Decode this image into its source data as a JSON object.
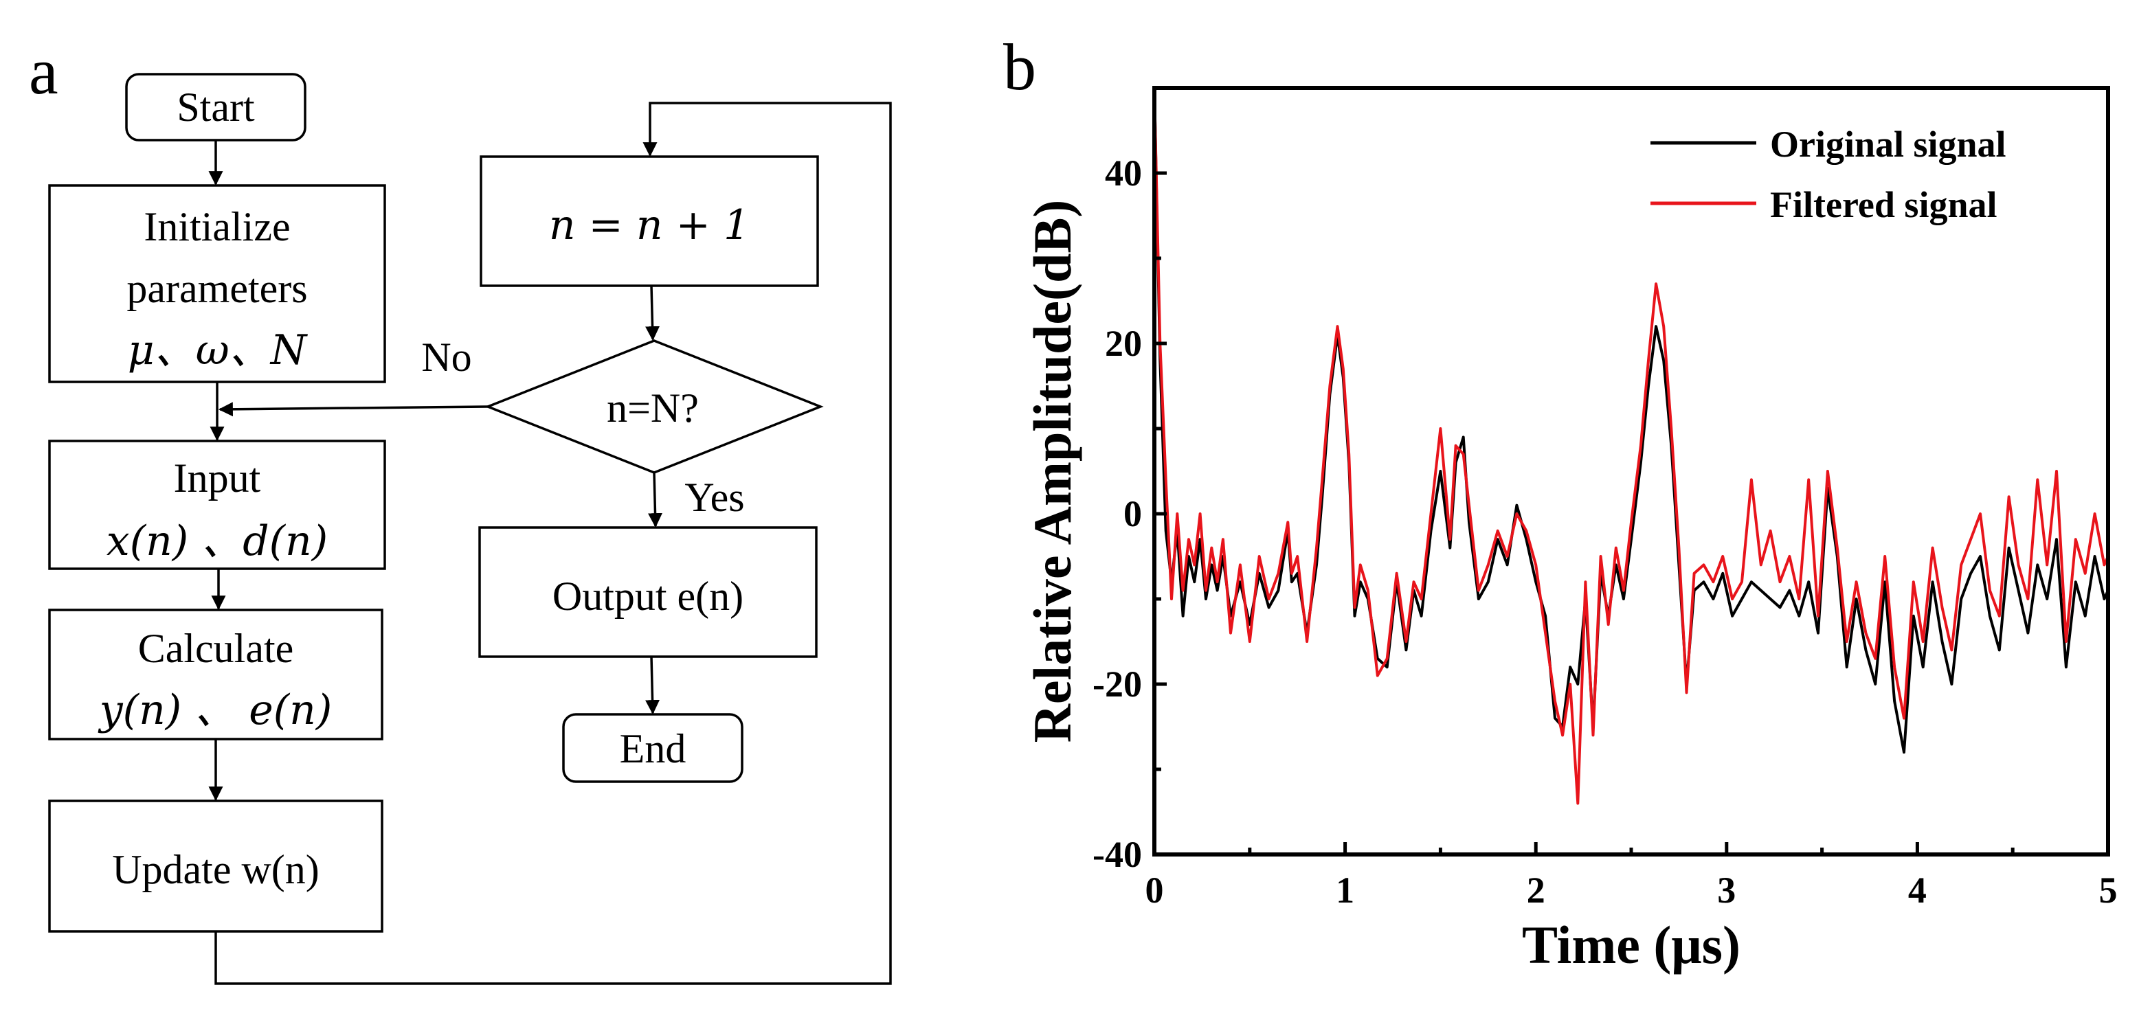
{
  "panel_a": {
    "label": "a",
    "nodes": {
      "start": "Start",
      "init_line1": "Initialize",
      "init_line2": "parameters",
      "init_line3": "μ、ω、N",
      "input_line1": "Input",
      "input_line2": "x(n) 、d(n)",
      "calc_line1": "Calculate",
      "calc_line2": "y(n) 、 e(n)",
      "update": "Update w(n)",
      "increment": "n = n + 1",
      "decision": "n=N?",
      "output": "Output e(n)",
      "end": "End"
    },
    "edges": {
      "no_label": "No",
      "yes_label": "Yes"
    }
  },
  "panel_b": {
    "label": "b"
  },
  "chart_data": {
    "type": "line",
    "title": "",
    "xlabel": "Time (μs)",
    "ylabel": "Relative Amplitude(dB)",
    "xlim": [
      0,
      5
    ],
    "ylim": [
      -40,
      50
    ],
    "xticks": [
      0,
      1,
      2,
      3,
      4,
      5
    ],
    "xtick_labels": [
      "0",
      "1",
      "2",
      "3",
      "4",
      "5"
    ],
    "yticks": [
      -40,
      -20,
      0,
      20,
      40
    ],
    "ytick_labels": [
      "-40",
      "-20",
      "0",
      "20",
      "40"
    ],
    "legend_position": "top-right",
    "series": [
      {
        "name": "Original signal",
        "color": "#000000",
        "x": [
          0,
          0.03,
          0.06,
          0.09,
          0.12,
          0.15,
          0.18,
          0.21,
          0.24,
          0.27,
          0.3,
          0.33,
          0.36,
          0.4,
          0.45,
          0.5,
          0.55,
          0.6,
          0.65,
          0.7,
          0.72,
          0.75,
          0.8,
          0.85,
          0.88,
          0.92,
          0.96,
          0.99,
          1.02,
          1.05,
          1.08,
          1.12,
          1.17,
          1.22,
          1.27,
          1.32,
          1.36,
          1.4,
          1.45,
          1.5,
          1.55,
          1.58,
          1.62,
          1.65,
          1.7,
          1.75,
          1.8,
          1.85,
          1.9,
          1.95,
          2.0,
          2.05,
          2.1,
          2.14,
          2.18,
          2.22,
          2.26,
          2.3,
          2.34,
          2.38,
          2.42,
          2.46,
          2.5,
          2.55,
          2.59,
          2.63,
          2.67,
          2.71,
          2.75,
          2.79,
          2.83,
          2.88,
          2.93,
          2.98,
          3.03,
          3.08,
          3.13,
          3.18,
          3.23,
          3.28,
          3.33,
          3.38,
          3.43,
          3.48,
          3.53,
          3.58,
          3.63,
          3.68,
          3.73,
          3.78,
          3.83,
          3.88,
          3.93,
          3.98,
          4.03,
          4.08,
          4.13,
          4.18,
          4.23,
          4.28,
          4.33,
          4.38,
          4.43,
          4.48,
          4.53,
          4.58,
          4.63,
          4.68,
          4.73,
          4.78,
          4.83,
          4.88,
          4.93,
          4.98,
          5.0
        ],
        "y": [
          50,
          18,
          -2,
          -8,
          -2,
          -12,
          -5,
          -8,
          -3,
          -10,
          -6,
          -9,
          -5,
          -12,
          -8,
          -13,
          -7,
          -11,
          -9,
          -2,
          -8,
          -7,
          -14,
          -6,
          2,
          14,
          21,
          16,
          6,
          -12,
          -8,
          -10,
          -17,
          -18,
          -8,
          -16,
          -9,
          -12,
          -2,
          5,
          -4,
          6,
          9,
          -1,
          -10,
          -8,
          -3,
          -6,
          1,
          -3,
          -8,
          -12,
          -24,
          -25,
          -18,
          -20,
          -10,
          -25,
          -7,
          -12,
          -6,
          -10,
          -3,
          6,
          15,
          22,
          18,
          8,
          -6,
          -20,
          -9,
          -8,
          -10,
          -7,
          -12,
          -10,
          -8,
          -9,
          -10,
          -11,
          -9,
          -12,
          -8,
          -14,
          3,
          -5,
          -18,
          -10,
          -16,
          -20,
          -8,
          -22,
          -28,
          -12,
          -18,
          -8,
          -15,
          -20,
          -10,
          -7,
          -5,
          -12,
          -16,
          -4,
          -9,
          -14,
          -6,
          -10,
          -3,
          -18,
          -8,
          -12,
          -5,
          -10,
          -9
        ]
      },
      {
        "name": "Filtered signal",
        "color": "#e8141b",
        "x": [
          0,
          0.03,
          0.06,
          0.09,
          0.12,
          0.15,
          0.18,
          0.21,
          0.24,
          0.27,
          0.3,
          0.33,
          0.36,
          0.4,
          0.45,
          0.5,
          0.55,
          0.6,
          0.65,
          0.7,
          0.72,
          0.75,
          0.8,
          0.85,
          0.88,
          0.92,
          0.96,
          0.99,
          1.02,
          1.05,
          1.08,
          1.12,
          1.17,
          1.22,
          1.27,
          1.32,
          1.36,
          1.4,
          1.45,
          1.5,
          1.55,
          1.58,
          1.62,
          1.65,
          1.7,
          1.75,
          1.8,
          1.85,
          1.9,
          1.95,
          2.0,
          2.05,
          2.1,
          2.14,
          2.18,
          2.22,
          2.26,
          2.3,
          2.34,
          2.38,
          2.42,
          2.46,
          2.5,
          2.55,
          2.59,
          2.63,
          2.67,
          2.71,
          2.75,
          2.79,
          2.83,
          2.88,
          2.93,
          2.98,
          3.03,
          3.08,
          3.13,
          3.18,
          3.23,
          3.28,
          3.33,
          3.38,
          3.43,
          3.48,
          3.53,
          3.58,
          3.63,
          3.68,
          3.73,
          3.78,
          3.83,
          3.88,
          3.93,
          3.98,
          4.03,
          4.08,
          4.13,
          4.18,
          4.23,
          4.28,
          4.33,
          4.38,
          4.43,
          4.48,
          4.53,
          4.58,
          4.63,
          4.68,
          4.73,
          4.78,
          4.83,
          4.88,
          4.93,
          4.98,
          5.0
        ],
        "y": [
          50,
          20,
          4,
          -10,
          0,
          -9,
          -3,
          -6,
          0,
          -9,
          -4,
          -8,
          -3,
          -14,
          -6,
          -15,
          -5,
          -10,
          -7,
          -1,
          -7,
          -5,
          -15,
          -4,
          4,
          15,
          22,
          17,
          7,
          -11,
          -6,
          -9,
          -19,
          -17,
          -7,
          -15,
          -8,
          -10,
          0,
          10,
          -3,
          8,
          7,
          1,
          -9,
          -6,
          -2,
          -5,
          0,
          -2,
          -6,
          -14,
          -22,
          -26,
          -20,
          -34,
          -8,
          -26,
          -5,
          -13,
          -4,
          -9,
          -1,
          8,
          18,
          27,
          22,
          10,
          -4,
          -21,
          -7,
          -6,
          -8,
          -5,
          -10,
          -8,
          4,
          -6,
          -2,
          -8,
          -5,
          -10,
          4,
          -12,
          5,
          -4,
          -15,
          -8,
          -14,
          -17,
          -5,
          -18,
          -24,
          -8,
          -15,
          -4,
          -11,
          -16,
          -6,
          -3,
          0,
          -9,
          -12,
          2,
          -6,
          -10,
          4,
          -6,
          5,
          -15,
          -3,
          -7,
          0,
          -6,
          -5
        ]
      }
    ]
  }
}
